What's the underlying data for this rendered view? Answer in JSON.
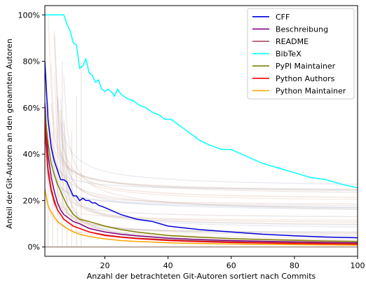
{
  "chart_data": {
    "type": "line",
    "xlabel": "Anzahl der betrachteten Git-Autoren sortiert nach Commits",
    "ylabel": "Anteil der Git-Autoren an den genannten Autoren",
    "xlim": [
      1,
      100
    ],
    "ylim": [
      -0.04,
      1.04
    ],
    "xticks": [
      20,
      40,
      60,
      80,
      100
    ],
    "xtick_labels": [
      "20",
      "40",
      "60",
      "80",
      "100"
    ],
    "yticks": [
      0,
      0.2,
      0.4,
      0.6,
      0.8,
      1.0
    ],
    "ytick_labels": [
      "0%",
      "20%",
      "40%",
      "60%",
      "80%",
      "100%"
    ],
    "grid": false,
    "legend_position": "top-right",
    "series": [
      {
        "name": "CFF",
        "color": "#0000dd",
        "points": [
          [
            1,
            0.8
          ],
          [
            2,
            0.55
          ],
          [
            3,
            0.43
          ],
          [
            4,
            0.37
          ],
          [
            5,
            0.33
          ],
          [
            6,
            0.29
          ],
          [
            7,
            0.29
          ],
          [
            8,
            0.28
          ],
          [
            9,
            0.25
          ],
          [
            10,
            0.22
          ],
          [
            11,
            0.22
          ],
          [
            12,
            0.2
          ],
          [
            13,
            0.21
          ],
          [
            14,
            0.2
          ],
          [
            15,
            0.2
          ],
          [
            16,
            0.19
          ],
          [
            17,
            0.19
          ],
          [
            18,
            0.18
          ],
          [
            20,
            0.17
          ],
          [
            25,
            0.14
          ],
          [
            30,
            0.12
          ],
          [
            35,
            0.11
          ],
          [
            40,
            0.09
          ],
          [
            50,
            0.075
          ],
          [
            60,
            0.065
          ],
          [
            70,
            0.055
          ],
          [
            80,
            0.048
          ],
          [
            90,
            0.043
          ],
          [
            100,
            0.04
          ]
        ]
      },
      {
        "name": "Beschreibung",
        "color": "#800080",
        "points": [
          [
            1,
            0.62
          ],
          [
            2,
            0.4
          ],
          [
            3,
            0.3
          ],
          [
            4,
            0.24
          ],
          [
            5,
            0.19
          ],
          [
            6,
            0.16
          ],
          [
            7,
            0.14
          ],
          [
            8,
            0.13
          ],
          [
            10,
            0.11
          ],
          [
            12,
            0.1
          ],
          [
            15,
            0.08
          ],
          [
            20,
            0.065
          ],
          [
            25,
            0.055
          ],
          [
            30,
            0.048
          ],
          [
            40,
            0.038
          ],
          [
            50,
            0.032
          ],
          [
            60,
            0.028
          ],
          [
            70,
            0.025
          ],
          [
            80,
            0.022
          ],
          [
            90,
            0.02
          ],
          [
            100,
            0.018
          ]
        ]
      },
      {
        "name": "README",
        "color": "#a04050",
        "points": [
          [
            1,
            0.5
          ],
          [
            2,
            0.32
          ],
          [
            3,
            0.24
          ],
          [
            4,
            0.19
          ],
          [
            5,
            0.16
          ],
          [
            6,
            0.14
          ],
          [
            7,
            0.12
          ],
          [
            8,
            0.11
          ],
          [
            10,
            0.09
          ],
          [
            12,
            0.08
          ],
          [
            15,
            0.065
          ],
          [
            20,
            0.052
          ],
          [
            25,
            0.044
          ],
          [
            30,
            0.038
          ],
          [
            40,
            0.031
          ],
          [
            50,
            0.026
          ],
          [
            60,
            0.023
          ],
          [
            70,
            0.02
          ],
          [
            80,
            0.018
          ],
          [
            90,
            0.016
          ],
          [
            100,
            0.015
          ]
        ]
      },
      {
        "name": "BibTeX",
        "color": "#00ffff",
        "points": [
          [
            1,
            1.0
          ],
          [
            2,
            1.0
          ],
          [
            3,
            1.0
          ],
          [
            4,
            1.0
          ],
          [
            5,
            1.0
          ],
          [
            6,
            1.0
          ],
          [
            7,
            1.0
          ],
          [
            8,
            0.96
          ],
          [
            9,
            0.93
          ],
          [
            10,
            0.88
          ],
          [
            11,
            0.87
          ],
          [
            12,
            0.77
          ],
          [
            13,
            0.78
          ],
          [
            14,
            0.81
          ],
          [
            15,
            0.75
          ],
          [
            16,
            0.74
          ],
          [
            17,
            0.71
          ],
          [
            18,
            0.72
          ],
          [
            19,
            0.68
          ],
          [
            20,
            0.67
          ],
          [
            21,
            0.68
          ],
          [
            22,
            0.67
          ],
          [
            23,
            0.65
          ],
          [
            24,
            0.68
          ],
          [
            25,
            0.66
          ],
          [
            27,
            0.64
          ],
          [
            29,
            0.63
          ],
          [
            31,
            0.61
          ],
          [
            33,
            0.6
          ],
          [
            35,
            0.58
          ],
          [
            37,
            0.57
          ],
          [
            39,
            0.55
          ],
          [
            41,
            0.55
          ],
          [
            43,
            0.53
          ],
          [
            45,
            0.51
          ],
          [
            47,
            0.49
          ],
          [
            50,
            0.46
          ],
          [
            53,
            0.44
          ],
          [
            55,
            0.43
          ],
          [
            57,
            0.42
          ],
          [
            60,
            0.42
          ],
          [
            65,
            0.39
          ],
          [
            70,
            0.36
          ],
          [
            75,
            0.34
          ],
          [
            80,
            0.32
          ],
          [
            85,
            0.3
          ],
          [
            90,
            0.29
          ],
          [
            95,
            0.27
          ],
          [
            100,
            0.255
          ]
        ]
      },
      {
        "name": "PyPI Maintainer",
        "color": "#808000",
        "points": [
          [
            1,
            0.58
          ],
          [
            2,
            0.45
          ],
          [
            3,
            0.36
          ],
          [
            4,
            0.31
          ],
          [
            5,
            0.27
          ],
          [
            6,
            0.24
          ],
          [
            7,
            0.21
          ],
          [
            8,
            0.18
          ],
          [
            9,
            0.16
          ],
          [
            10,
            0.14
          ],
          [
            12,
            0.12
          ],
          [
            15,
            0.11
          ],
          [
            20,
            0.09
          ],
          [
            25,
            0.075
          ],
          [
            30,
            0.065
          ],
          [
            40,
            0.05
          ],
          [
            50,
            0.042
          ],
          [
            60,
            0.036
          ],
          [
            70,
            0.032
          ],
          [
            80,
            0.029
          ],
          [
            90,
            0.026
          ],
          [
            100,
            0.024
          ]
        ]
      },
      {
        "name": "Python Authors",
        "color": "#ff0000",
        "points": [
          [
            1,
            0.55
          ],
          [
            2,
            0.34
          ],
          [
            3,
            0.25
          ],
          [
            4,
            0.2
          ],
          [
            5,
            0.16
          ],
          [
            6,
            0.14
          ],
          [
            7,
            0.12
          ],
          [
            8,
            0.11
          ],
          [
            10,
            0.09
          ],
          [
            12,
            0.08
          ],
          [
            15,
            0.065
          ],
          [
            20,
            0.05
          ],
          [
            25,
            0.042
          ],
          [
            30,
            0.036
          ],
          [
            40,
            0.028
          ],
          [
            50,
            0.023
          ],
          [
            60,
            0.019
          ],
          [
            70,
            0.017
          ],
          [
            80,
            0.015
          ],
          [
            90,
            0.013
          ],
          [
            100,
            0.012
          ]
        ]
      },
      {
        "name": "Python Maintainer",
        "color": "#ffa500",
        "points": [
          [
            1,
            0.25
          ],
          [
            2,
            0.18
          ],
          [
            3,
            0.15
          ],
          [
            4,
            0.13
          ],
          [
            5,
            0.11
          ],
          [
            6,
            0.1
          ],
          [
            7,
            0.09
          ],
          [
            8,
            0.08
          ],
          [
            10,
            0.065
          ],
          [
            12,
            0.055
          ],
          [
            15,
            0.045
          ],
          [
            20,
            0.035
          ],
          [
            25,
            0.028
          ],
          [
            30,
            0.024
          ],
          [
            40,
            0.018
          ],
          [
            50,
            0.015
          ],
          [
            60,
            0.013
          ],
          [
            70,
            0.011
          ],
          [
            80,
            0.01
          ],
          [
            90,
            0.009
          ],
          [
            100,
            0.008
          ]
        ]
      }
    ]
  }
}
